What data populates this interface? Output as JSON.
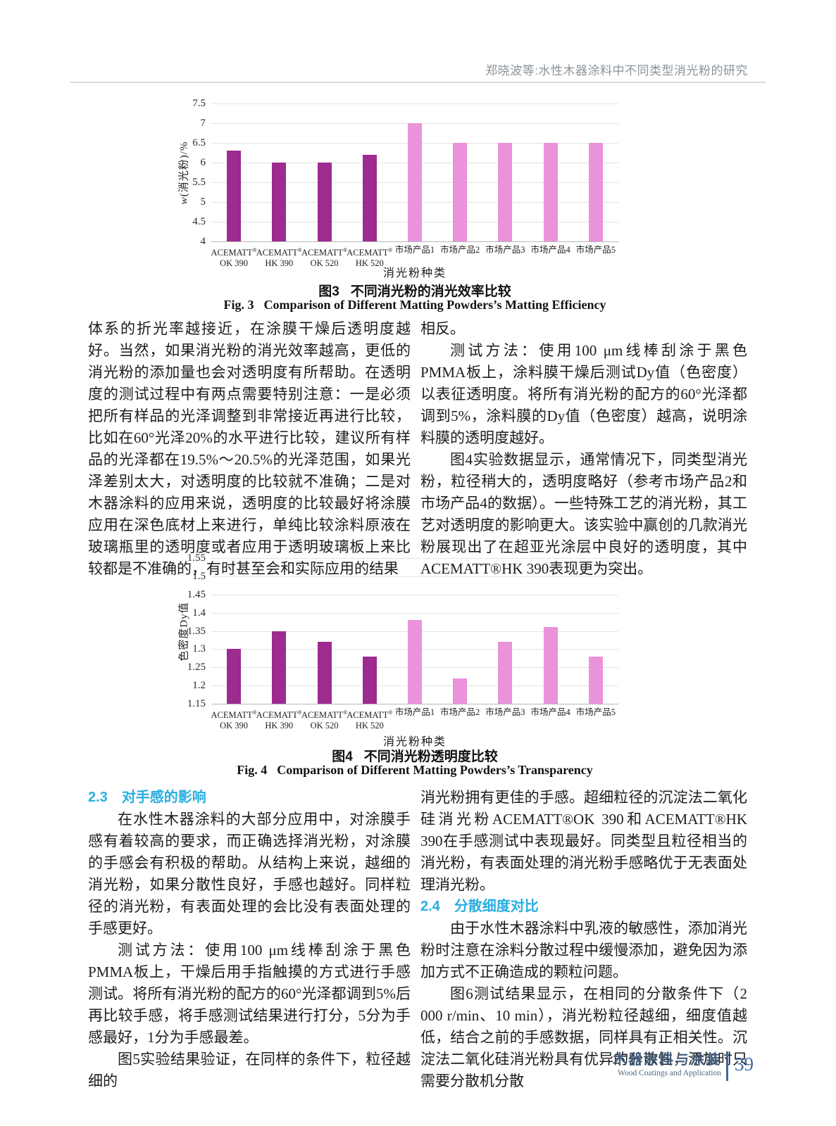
{
  "header": {
    "running_title": "郑晓波等:水性木器涂料中不同类型消光粉的研究"
  },
  "footer": {
    "journal_cn": "木器涂料与涂装",
    "journal_en": "Wood Coatings and Application",
    "page_number": "39"
  },
  "colors": {
    "evonik_bar": "#9d2b90",
    "market_bar": "#ea93db",
    "section_heading": "#29aee0",
    "footer_blue": "#455f7d"
  },
  "chart_data": [
    {
      "type": "bar",
      "title_cn": {
        "tag": "图3",
        "text": "不同消光粉的消光效率比较"
      },
      "title_en": {
        "tag": "Fig. 3",
        "text": "Comparison of Different Matting Powders’s Matting Efficiency"
      },
      "ylabel": "w(消光粉)/%",
      "xlabel": "消光粉种类",
      "ylim": [
        4,
        7.5
      ],
      "ytick_step": 0.5,
      "grid": true,
      "legend": "none",
      "categories": [
        [
          "ACEMATT®",
          "OK 390"
        ],
        [
          "ACEMATT®",
          "HK 390"
        ],
        [
          "ACEMATT®",
          "OK 520"
        ],
        [
          "ACEMATT®",
          "HK 520"
        ],
        [
          "市场产品1",
          ""
        ],
        [
          "市场产品2",
          ""
        ],
        [
          "市场产品3",
          ""
        ],
        [
          "市场产品4",
          ""
        ],
        [
          "市场产品5",
          ""
        ]
      ],
      "values": [
        6.3,
        6.0,
        6.0,
        6.2,
        7.0,
        6.5,
        6.5,
        6.5,
        6.5
      ],
      "bar_colors": [
        "#9d2b90",
        "#9d2b90",
        "#9d2b90",
        "#9d2b90",
        "#ea93db",
        "#ea93db",
        "#ea93db",
        "#ea93db",
        "#ea93db"
      ]
    },
    {
      "type": "bar",
      "title_cn": {
        "tag": "图4",
        "text": "不同消光粉透明度比较"
      },
      "title_en": {
        "tag": "Fig. 4",
        "text": "Comparison of Different Matting Powders’s Transparency"
      },
      "ylabel": "色密度Dy值",
      "xlabel": "消光粉种类",
      "ylim": [
        1.15,
        1.55
      ],
      "ytick_step": 0.05,
      "grid": true,
      "legend": "none",
      "categories": [
        [
          "ACEMATT®",
          "OK 390"
        ],
        [
          "ACEMATT®",
          "HK 390"
        ],
        [
          "ACEMATT®",
          "OK 520"
        ],
        [
          "ACEMATT®",
          "HK 520"
        ],
        [
          "市场产品1",
          ""
        ],
        [
          "市场产品2",
          ""
        ],
        [
          "市场产品3",
          ""
        ],
        [
          "市场产品4",
          ""
        ],
        [
          "市场产品5",
          ""
        ]
      ],
      "values": [
        1.3,
        1.35,
        1.32,
        1.28,
        1.38,
        1.22,
        1.32,
        1.36,
        1.28
      ],
      "bar_colors": [
        "#9d2b90",
        "#9d2b90",
        "#9d2b90",
        "#9d2b90",
        "#ea93db",
        "#ea93db",
        "#ea93db",
        "#ea93db",
        "#ea93db"
      ]
    }
  ],
  "body": {
    "left_top": [
      {
        "indent": false,
        "text": "体系的折光率越接近，在涂膜干燥后透明度越好。当然，如果消光粉的消光效率越高，更低的消光粉的添加量也会对透明度有所帮助。在透明度的测试过程中有两点需要特别注意：一是必须把所有样品的光泽调整到非常接近再进行比较，比如在60°光泽20%的水平进行比较，建议所有样品的光泽都在19.5%～20.5%的光泽范围，如果光泽差别太大，对透明度的比较就不准确；二是对木器涂料的应用来说，透明度的比较最好将涂膜应用在深色底材上来进行，单纯比较涂料原液在玻璃瓶里的透明度或者应用于透明玻璃板上来比较都是不准确的，有时甚至会和实际应用的结果"
      }
    ],
    "right_top": [
      {
        "indent": false,
        "text": "相反。"
      },
      {
        "indent": true,
        "text": "测试方法：使用100 μm线棒刮涂于黑色PMMA板上，涂料膜干燥后测试Dy值（色密度）以表征透明度。将所有消光粉的配方的60°光泽都调到5%，涂料膜的Dy值（色密度）越高，说明涂料膜的透明度越好。"
      },
      {
        "indent": true,
        "text": "图4实验数据显示，通常情况下，同类型消光粉，粒径稍大的，透明度略好（参考市场产品2和市场产品4的数据）。一些特殊工艺的消光粉，其工艺对透明度的影响更大。该实验中赢创的几款消光粉展现出了在超亚光涂层中良好的透明度，其中ACEMATT®HK 390表现更为突出。"
      }
    ],
    "sec23": {
      "number": "2.3",
      "title": "对手感的影响"
    },
    "left_bottom": [
      {
        "indent": true,
        "text": "在水性木器涂料的大部分应用中，对涂膜手感有着较高的要求，而正确选择消光粉，对涂膜的手感会有积极的帮助。从结构上来说，越细的消光粉，如果分散性良好，手感也越好。同样粒径的消光粉，有表面处理的会比没有表面处理的手感更好。"
      },
      {
        "indent": true,
        "text": "测试方法：使用100 μm线棒刮涂于黑色PMMA板上，干燥后用手指触摸的方式进行手感测试。将所有消光粉的配方的60°光泽都调到5%后再比较手感，将手感测试结果进行打分，5分为手感最好，1分为手感最差。"
      },
      {
        "indent": true,
        "text": "图5实验结果验证，在同样的条件下，粒径越细的"
      }
    ],
    "right_bottom_a": [
      {
        "indent": false,
        "text": "消光粉拥有更佳的手感。超细粒径的沉淀法二氧化硅消光粉ACEMATT®OK 390和ACEMATT®HK 390在手感测试中表现最好。同类型且粒径相当的消光粉，有表面处理的消光粉手感略优于无表面处理消光粉。"
      }
    ],
    "sec24": {
      "number": "2.4",
      "title": "分散细度对比"
    },
    "right_bottom_b": [
      {
        "indent": true,
        "text": "由于水性木器涂料中乳液的敏感性，添加消光粉时注意在涂料分散过程中缓慢添加，避免因为添加方式不正确造成的颗粒问题。"
      },
      {
        "indent": true,
        "text": "图6测试结果显示，在相同的分散条件下（2 000 r/min、10 min），消光粉粒径越细，细度值越低，结合之前的手感数据，同样具有正相关性。沉淀法二氧化硅消光粉具有优异的分散性，添加时只需要分散机分散"
      }
    ]
  }
}
